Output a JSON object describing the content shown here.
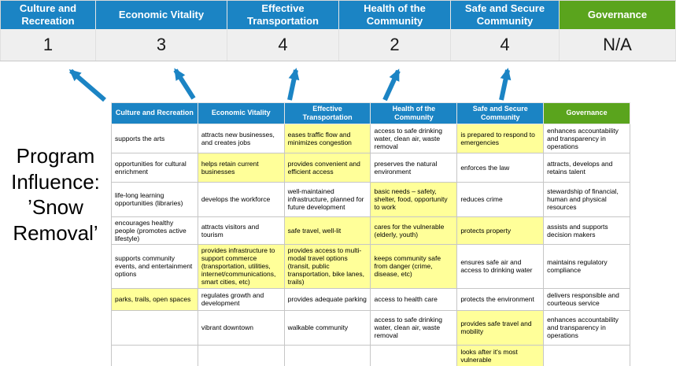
{
  "title": "Program Influence: ’Snow Removal’",
  "colors": {
    "blue": "#1b84c4",
    "green": "#5aa41d",
    "highlight": "#ffff99",
    "score_band": "#efefef"
  },
  "summary": {
    "columns": [
      {
        "label": "Culture and Recreation",
        "score": "1"
      },
      {
        "label": "Economic Vitality",
        "score": "3"
      },
      {
        "label": "Effective Transportation",
        "score": "4"
      },
      {
        "label": "Health of the Community",
        "score": "2"
      },
      {
        "label": "Safe and Secure Community",
        "score": "4"
      },
      {
        "label": "Governance",
        "score": "N/A"
      }
    ]
  },
  "matrix": {
    "columns": [
      {
        "header": "Culture and Recreation",
        "accent": "blue",
        "cells": [
          {
            "text": "supports the arts",
            "highlight": false
          },
          {
            "text": "opportunities for cultural enrichment",
            "highlight": false
          },
          {
            "text": "life-long learning opportunities (libraries)",
            "highlight": false
          },
          {
            "text": "encourages healthy people (promotes active lifestyle)",
            "highlight": false
          },
          {
            "text": "supports community events, and entertainment options",
            "highlight": false
          },
          {
            "text": "parks, trails, open spaces",
            "highlight": true
          },
          {
            "text": "",
            "highlight": false
          },
          {
            "text": "",
            "highlight": false
          }
        ]
      },
      {
        "header": "Economic Vitality",
        "accent": "blue",
        "cells": [
          {
            "text": "attracts new businesses, and creates jobs",
            "highlight": false
          },
          {
            "text": "helps retain current businesses",
            "highlight": true
          },
          {
            "text": "develops the workforce",
            "highlight": false
          },
          {
            "text": "attracts visitors and tourism",
            "highlight": false
          },
          {
            "text": "provides infrastructure to support commerce (transportation, utilities, internet/communications, smart cities, etc)",
            "highlight": true
          },
          {
            "text": "regulates growth and development",
            "highlight": false
          },
          {
            "text": "vibrant downtown",
            "highlight": false
          },
          {
            "text": "",
            "highlight": false
          }
        ]
      },
      {
        "header": "Effective Transportation",
        "accent": "blue",
        "cells": [
          {
            "text": "eases traffic flow and minimizes congestion",
            "highlight": true
          },
          {
            "text": "provides convenient and efficient access",
            "highlight": true
          },
          {
            "text": "well-maintained infrastructure, planned for future development",
            "highlight": false
          },
          {
            "text": "safe travel, well-lit",
            "highlight": true
          },
          {
            "text": "provides access to multi-modal travel options (transit, public transportation, bike lanes, trails)",
            "highlight": true
          },
          {
            "text": "provides adequate parking",
            "highlight": false
          },
          {
            "text": "walkable community",
            "highlight": false
          },
          {
            "text": "",
            "highlight": false
          }
        ]
      },
      {
        "header": "Health of the Community",
        "accent": "blue",
        "cells": [
          {
            "text": "access to safe drinking water, clean air, waste removal",
            "highlight": false
          },
          {
            "text": "preserves the natural environment",
            "highlight": false
          },
          {
            "text": "basic needs – safety, shelter, food, opportunity to work",
            "highlight": true
          },
          {
            "text": "cares for the vulnerable (elderly, youth)",
            "highlight": true
          },
          {
            "text": "keeps community safe from danger (crime, disease, etc)",
            "highlight": true
          },
          {
            "text": "access to health care",
            "highlight": false
          },
          {
            "text": "access to safe drinking water, clean air, waste removal",
            "highlight": false
          },
          {
            "text": "",
            "highlight": false
          }
        ]
      },
      {
        "header": "Safe and Secure Community",
        "accent": "blue",
        "cells": [
          {
            "text": "is prepared to respond to emergencies",
            "highlight": true
          },
          {
            "text": "enforces the law",
            "highlight": false
          },
          {
            "text": "reduces crime",
            "highlight": false
          },
          {
            "text": "protects property",
            "highlight": true
          },
          {
            "text": "ensures safe air and access to drinking water",
            "highlight": false
          },
          {
            "text": "protects the environment",
            "highlight": false
          },
          {
            "text": "provides safe travel and mobility",
            "highlight": true
          },
          {
            "text": "looks after it's most vulnerable",
            "highlight": true
          }
        ]
      },
      {
        "header": "Governance",
        "accent": "green",
        "cells": [
          {
            "text": "enhances accountability and transparency in operations",
            "highlight": false
          },
          {
            "text": "attracts, develops and retains talent",
            "highlight": false
          },
          {
            "text": "stewardship of financial, human and physical resources",
            "highlight": false
          },
          {
            "text": "assists and supports decision makers",
            "highlight": false
          },
          {
            "text": "maintains regulatory compliance",
            "highlight": false
          },
          {
            "text": "delivers responsible and courteous service",
            "highlight": false
          },
          {
            "text": "enhances accountability and transparency in operations",
            "highlight": false
          },
          {
            "text": "",
            "highlight": false
          }
        ]
      }
    ]
  }
}
